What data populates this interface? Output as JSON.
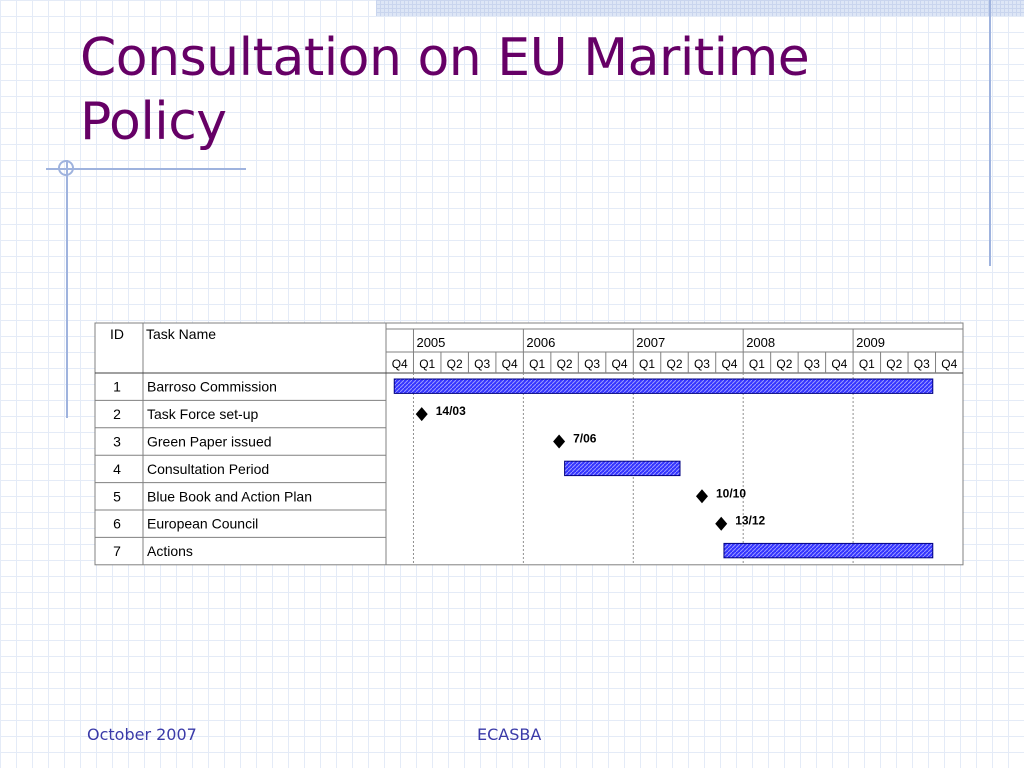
{
  "slide": {
    "title": "Consultation on EU Maritime Policy",
    "footer_date": "October 2007",
    "footer_org": "ECASBA"
  },
  "gantt": {
    "headers": {
      "id": "ID",
      "task": "Task Name"
    },
    "years": [
      "2005",
      "2006",
      "2007",
      "2008",
      "2009"
    ],
    "quarters": [
      "Q4",
      "Q1",
      "Q2",
      "Q3",
      "Q4",
      "Q1",
      "Q2",
      "Q3",
      "Q4",
      "Q1",
      "Q2",
      "Q3",
      "Q4",
      "Q1",
      "Q2",
      "Q3",
      "Q4",
      "Q1",
      "Q2",
      "Q3",
      "Q4"
    ],
    "tasks": [
      {
        "id": "1",
        "name": "Barroso Commission",
        "type": "bar",
        "start": 0.3,
        "end": 19.9
      },
      {
        "id": "2",
        "name": "Task Force set-up",
        "type": "milestone",
        "at": 1.3,
        "label": "14/03"
      },
      {
        "id": "3",
        "name": "Green Paper issued",
        "type": "milestone",
        "at": 6.3,
        "label": "7/06"
      },
      {
        "id": "4",
        "name": "Consultation Period",
        "type": "bar",
        "start": 6.5,
        "end": 10.7
      },
      {
        "id": "5",
        "name": "Blue Book and Action Plan",
        "type": "milestone",
        "at": 11.5,
        "label": "10/10"
      },
      {
        "id": "6",
        "name": "European Council",
        "type": "milestone",
        "at": 12.2,
        "label": "13/12"
      },
      {
        "id": "7",
        "name": "Actions",
        "type": "bar",
        "start": 12.3,
        "end": 19.9
      }
    ]
  },
  "colors": {
    "title": "#660066",
    "bar_fill": "#3333ff",
    "bar_stroke": "#000080",
    "milestone": "#000000",
    "grid": "#808080"
  }
}
